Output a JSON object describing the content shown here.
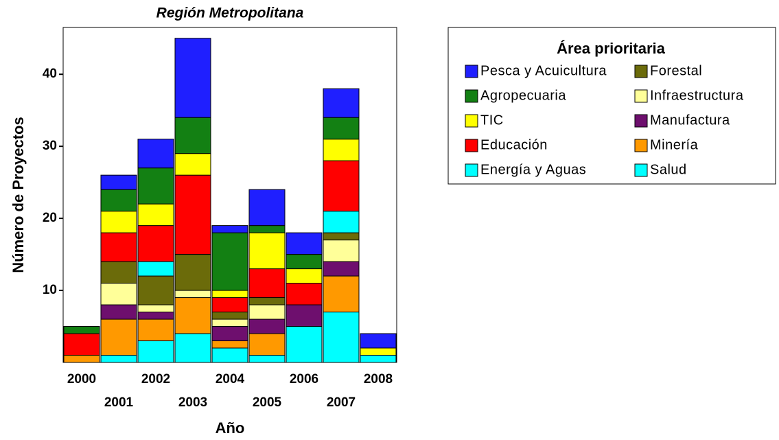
{
  "chart_data": {
    "type": "stacked_bar",
    "title": "Región Metropolitana",
    "x_label": "Año",
    "y_label": "Número de Proyectos",
    "legend_title": "Área prioritaria",
    "categories": [
      "2000",
      "2001",
      "2002",
      "2003",
      "2004",
      "2005",
      "2006",
      "2007",
      "2008"
    ],
    "ylim": [
      0,
      46.5
    ],
    "yticks": [
      10,
      20,
      30,
      40
    ],
    "series": [
      {
        "name": "Pesca y Acuicultura",
        "color": "#1f1fff",
        "values": [
          0,
          2,
          4,
          11,
          1,
          5,
          3,
          4,
          2
        ]
      },
      {
        "name": "Forestal",
        "color": "#6b6b0a",
        "values": [
          0,
          3,
          4,
          5,
          1,
          1,
          0,
          1,
          0
        ]
      },
      {
        "name": "Agropecuaria",
        "color": "#138013",
        "values": [
          1,
          3,
          5,
          5,
          8,
          1,
          2,
          3,
          0
        ]
      },
      {
        "name": "Infraestructura",
        "color": "#ffff99",
        "values": [
          0,
          3,
          1,
          1,
          1,
          2,
          0,
          3,
          0
        ]
      },
      {
        "name": "TIC",
        "color": "#ffff00",
        "values": [
          0,
          3,
          3,
          3,
          1,
          5,
          2,
          3,
          1
        ]
      },
      {
        "name": "Manufactura",
        "color": "#6e0f6e",
        "values": [
          0,
          2,
          1,
          0,
          2,
          2,
          3,
          2,
          0
        ]
      },
      {
        "name": "Educación",
        "color": "#ff0000",
        "values": [
          3,
          4,
          5,
          11,
          2,
          4,
          3,
          7,
          0
        ]
      },
      {
        "name": "Minería",
        "color": "#ff9900",
        "values": [
          1,
          5,
          3,
          5,
          1,
          3,
          0,
          5,
          0
        ]
      },
      {
        "name": "Energía y Aguas",
        "color": "#00ffff",
        "values": [
          0,
          0,
          2,
          0,
          0,
          0,
          0,
          3,
          0
        ]
      },
      {
        "name": "Salud",
        "color": "#00ffff",
        "values": [
          0,
          1,
          3,
          4,
          2,
          1,
          5,
          7,
          1
        ]
      }
    ]
  }
}
